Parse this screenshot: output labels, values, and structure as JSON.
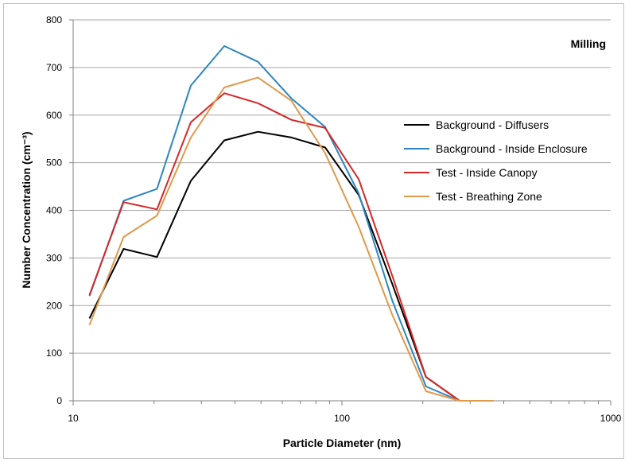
{
  "chart_data": {
    "type": "line",
    "title": "",
    "annotation": "Milling",
    "xlabel": "Particle Diameter (nm)",
    "ylabel": "Number Concentration (cm⁻³)",
    "x_scale": "log",
    "xlim": [
      10,
      1000
    ],
    "ylim": [
      0,
      800
    ],
    "x_ticks": [
      "10",
      "100",
      "1000"
    ],
    "y_ticks": [
      "0",
      "100",
      "200",
      "300",
      "400",
      "500",
      "600",
      "700",
      "800"
    ],
    "grid": "horizontal",
    "legend_position": "right",
    "x": [
      11.5,
      15.4,
      20.5,
      27.4,
      36.5,
      48.7,
      64.9,
      86.6,
      115.5,
      154,
      205.4,
      273.8,
      365.2
    ],
    "series": [
      {
        "name": "Background - Diffusers",
        "color": "#000000",
        "values": [
          173,
          319,
          302,
          462,
          547,
          565,
          553,
          532,
          432,
          245,
          50,
          0,
          0
        ]
      },
      {
        "name": "Background - Inside Enclosure",
        "color": "#2e86c1",
        "values": [
          220,
          420,
          445,
          662,
          745,
          712,
          635,
          575,
          435,
          210,
          30,
          0,
          0
        ]
      },
      {
        "name": "Test - Inside Canopy",
        "color": "#d62728",
        "values": [
          222,
          417,
          402,
          585,
          646,
          625,
          590,
          573,
          465,
          262,
          50,
          0,
          0
        ]
      },
      {
        "name": "Test - Breathing Zone",
        "color": "#e0994a",
        "values": [
          159,
          344,
          389,
          553,
          658,
          679,
          630,
          520,
          365,
          180,
          20,
          0,
          0
        ]
      }
    ]
  }
}
